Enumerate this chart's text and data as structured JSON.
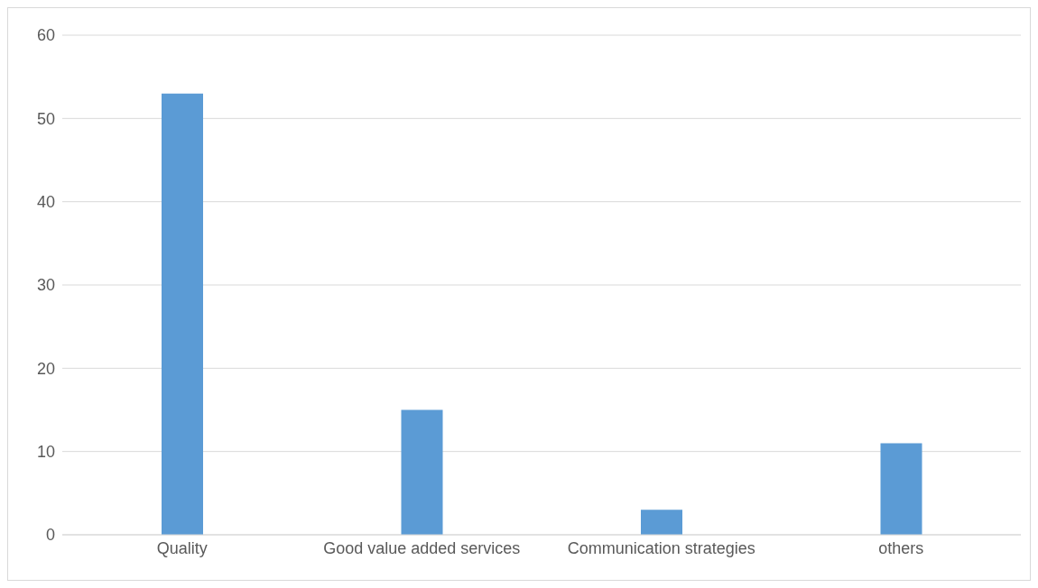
{
  "chart_data": {
    "type": "bar",
    "categories": [
      "Quality",
      "Good value added services",
      "Communication strategies",
      "others"
    ],
    "values": [
      53,
      15,
      3,
      11
    ],
    "color": "#5b9bd5",
    "ylim": [
      0,
      60
    ],
    "yticks": [
      0,
      10,
      20,
      30,
      40,
      50,
      60
    ],
    "grid": "y",
    "legend": false
  }
}
